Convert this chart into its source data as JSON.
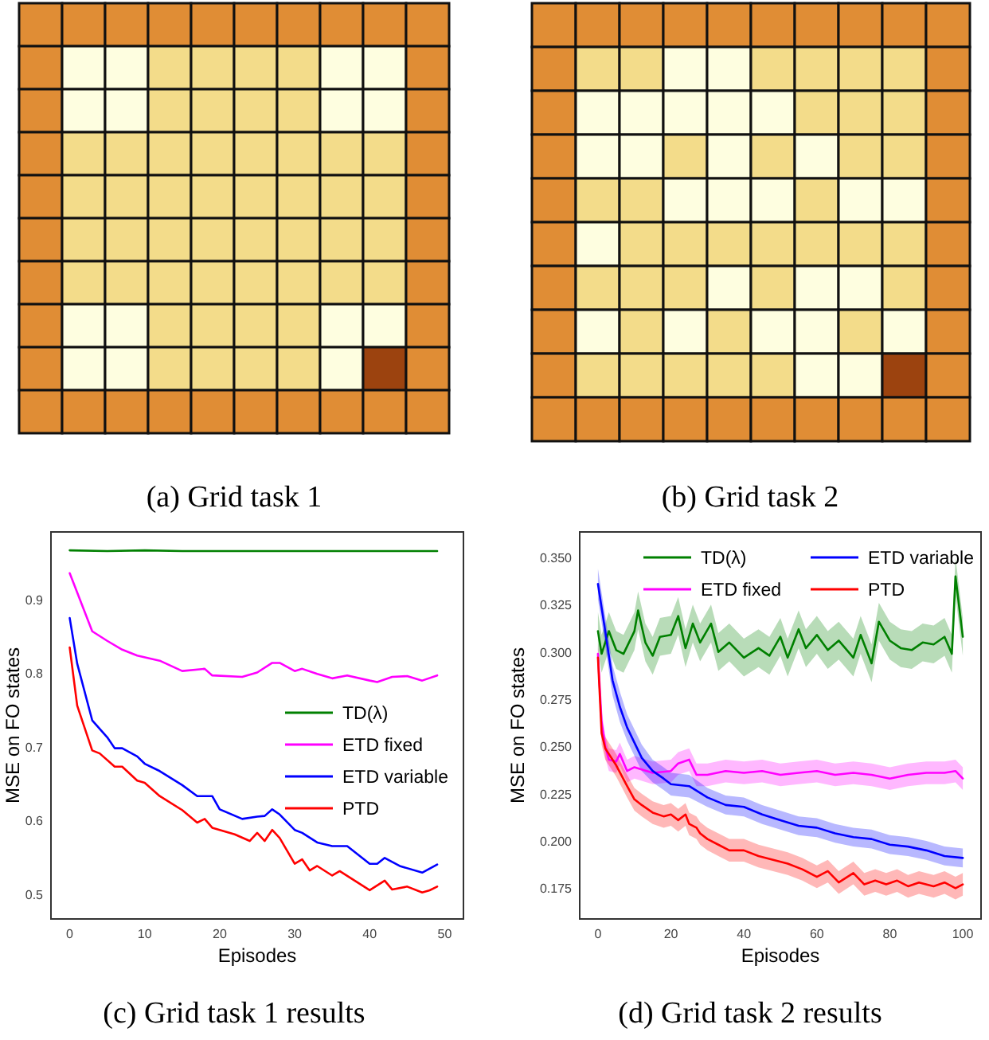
{
  "chart_data": [
    {
      "type": "other",
      "title": "(a) Grid task 1"
    },
    {
      "type": "other",
      "title": "(b) Grid task 2"
    },
    {
      "type": "line",
      "title": "(c) Grid task 1 results",
      "xlabel": "Episodes",
      "ylabel": "MSE on FO states",
      "xlim": [
        -2.5,
        52.5
      ],
      "ylim": [
        0.466,
        0.992
      ],
      "xticks": [
        0,
        10,
        20,
        30,
        40,
        50
      ],
      "yticks": [
        0.5,
        0.6,
        0.7,
        0.8,
        0.9
      ],
      "legend": "center right",
      "series": [
        {
          "name": "TD(λ)",
          "color": "#008000",
          "x": [
            0,
            5,
            10,
            15,
            20,
            25,
            30,
            35,
            40,
            45,
            49
          ],
          "values": [
            0.967,
            0.966,
            0.967,
            0.966,
            0.966,
            0.966,
            0.966,
            0.966,
            0.966,
            0.966,
            0.966
          ]
        },
        {
          "name": "ETD fixed",
          "color": "#ff00ff",
          "x": [
            0,
            3,
            5,
            7,
            9,
            12,
            15,
            18,
            19,
            23,
            25,
            27,
            28,
            30,
            31,
            33,
            35,
            37,
            40,
            41,
            43,
            45,
            47,
            49
          ],
          "values": [
            0.936,
            0.857,
            0.844,
            0.832,
            0.824,
            0.817,
            0.803,
            0.806,
            0.797,
            0.795,
            0.801,
            0.814,
            0.814,
            0.803,
            0.806,
            0.799,
            0.793,
            0.797,
            0.79,
            0.788,
            0.795,
            0.796,
            0.79,
            0.797
          ]
        },
        {
          "name": "ETD variable",
          "color": "#0000ff",
          "x": [
            0,
            1,
            3,
            5,
            6,
            7,
            9,
            10,
            12,
            15,
            17,
            19,
            20,
            23,
            25,
            26,
            27,
            28,
            30,
            31,
            33,
            35,
            37,
            40,
            41,
            42,
            44,
            47,
            49
          ],
          "values": [
            0.875,
            0.813,
            0.736,
            0.713,
            0.698,
            0.698,
            0.687,
            0.677,
            0.667,
            0.648,
            0.633,
            0.633,
            0.615,
            0.602,
            0.605,
            0.606,
            0.615,
            0.608,
            0.587,
            0.583,
            0.57,
            0.565,
            0.565,
            0.541,
            0.541,
            0.549,
            0.538,
            0.529,
            0.54
          ]
        },
        {
          "name": "PTD",
          "color": "#ff0000",
          "x": [
            0,
            1,
            3,
            4,
            6,
            7,
            9,
            10,
            12,
            15,
            17,
            18,
            19,
            22,
            24,
            25,
            26,
            27,
            28,
            30,
            31,
            32,
            33,
            35,
            36,
            38,
            40,
            42,
            43,
            45,
            47,
            48,
            49
          ],
          "values": [
            0.835,
            0.756,
            0.695,
            0.691,
            0.673,
            0.673,
            0.654,
            0.651,
            0.633,
            0.614,
            0.597,
            0.602,
            0.59,
            0.581,
            0.572,
            0.583,
            0.572,
            0.587,
            0.576,
            0.541,
            0.547,
            0.532,
            0.538,
            0.525,
            0.531,
            0.518,
            0.505,
            0.518,
            0.506,
            0.51,
            0.502,
            0.505,
            0.51
          ]
        }
      ]
    },
    {
      "type": "line",
      "title": "(d) Grid task 2 results",
      "xlabel": "Episodes",
      "ylabel": "MSE on FO states",
      "xlim": [
        -5,
        105
      ],
      "ylim": [
        0.1587,
        0.3635
      ],
      "xticks": [
        0,
        20,
        40,
        60,
        80,
        100
      ],
      "yticks": [
        {
          "value": 0.175,
          "label": "0.175"
        },
        {
          "value": 0.2,
          "label": "0.200"
        },
        {
          "value": 0.225,
          "label": "0.225"
        },
        {
          "value": 0.25,
          "label": "0.250"
        },
        {
          "value": 0.275,
          "label": "0.275"
        },
        {
          "value": 0.3,
          "label": "0.300"
        },
        {
          "value": 0.325,
          "label": "0.325"
        },
        {
          "value": 0.35,
          "label": "0.350"
        }
      ],
      "legend": "top",
      "series": [
        {
          "name": "TD(λ)",
          "color": "#008000",
          "x": [
            0,
            1,
            3,
            5,
            7,
            10,
            11,
            13,
            15,
            17,
            20,
            22,
            24,
            26,
            28,
            31,
            33,
            36,
            40,
            44,
            47,
            50,
            52,
            55,
            57,
            60,
            63,
            66,
            70,
            72,
            75,
            77,
            80,
            83,
            86,
            89,
            92,
            95,
            97,
            98,
            100
          ],
          "values": [
            0.311,
            0.299,
            0.311,
            0.301,
            0.299,
            0.311,
            0.322,
            0.305,
            0.298,
            0.308,
            0.309,
            0.319,
            0.302,
            0.315,
            0.305,
            0.315,
            0.3,
            0.305,
            0.297,
            0.302,
            0.298,
            0.308,
            0.297,
            0.312,
            0.302,
            0.309,
            0.301,
            0.306,
            0.297,
            0.309,
            0.294,
            0.316,
            0.306,
            0.302,
            0.301,
            0.305,
            0.304,
            0.308,
            0.299,
            0.34,
            0.308
          ],
          "lower": [
            0.301,
            0.289,
            0.301,
            0.291,
            0.289,
            0.301,
            0.312,
            0.295,
            0.288,
            0.298,
            0.299,
            0.309,
            0.292,
            0.305,
            0.295,
            0.305,
            0.29,
            0.295,
            0.287,
            0.292,
            0.288,
            0.298,
            0.287,
            0.302,
            0.292,
            0.299,
            0.291,
            0.296,
            0.287,
            0.299,
            0.284,
            0.306,
            0.296,
            0.292,
            0.291,
            0.295,
            0.294,
            0.298,
            0.289,
            0.33,
            0.298
          ],
          "upper": [
            0.321,
            0.309,
            0.321,
            0.311,
            0.309,
            0.321,
            0.332,
            0.315,
            0.308,
            0.318,
            0.319,
            0.329,
            0.312,
            0.325,
            0.315,
            0.325,
            0.31,
            0.315,
            0.307,
            0.312,
            0.308,
            0.318,
            0.307,
            0.322,
            0.312,
            0.319,
            0.311,
            0.316,
            0.307,
            0.319,
            0.304,
            0.326,
            0.316,
            0.312,
            0.311,
            0.315,
            0.314,
            0.318,
            0.309,
            0.35,
            0.318
          ]
        },
        {
          "name": "ETD fixed",
          "color": "#ff00ff",
          "x": [
            0,
            1,
            2,
            3,
            5,
            6,
            8,
            10,
            15,
            20,
            22,
            25,
            27,
            30,
            35,
            40,
            45,
            50,
            55,
            60,
            65,
            70,
            75,
            80,
            85,
            90,
            95,
            98,
            100
          ],
          "values": [
            0.299,
            0.263,
            0.25,
            0.243,
            0.242,
            0.246,
            0.237,
            0.239,
            0.236,
            0.237,
            0.241,
            0.243,
            0.235,
            0.235,
            0.237,
            0.236,
            0.237,
            0.235,
            0.236,
            0.237,
            0.235,
            0.236,
            0.235,
            0.233,
            0.235,
            0.236,
            0.236,
            0.237,
            0.233
          ],
          "lower": [
            0.293,
            0.257,
            0.244,
            0.237,
            0.236,
            0.24,
            0.231,
            0.233,
            0.23,
            0.231,
            0.235,
            0.237,
            0.229,
            0.229,
            0.231,
            0.23,
            0.231,
            0.229,
            0.23,
            0.231,
            0.229,
            0.23,
            0.229,
            0.227,
            0.229,
            0.23,
            0.23,
            0.231,
            0.227
          ],
          "upper": [
            0.305,
            0.269,
            0.256,
            0.249,
            0.248,
            0.252,
            0.243,
            0.245,
            0.242,
            0.243,
            0.247,
            0.249,
            0.241,
            0.241,
            0.243,
            0.242,
            0.243,
            0.241,
            0.242,
            0.243,
            0.241,
            0.242,
            0.241,
            0.239,
            0.241,
            0.242,
            0.242,
            0.243,
            0.239
          ]
        },
        {
          "name": "ETD variable",
          "color": "#0000ff",
          "x": [
            0,
            2,
            4,
            6,
            8,
            10,
            12,
            15,
            18,
            20,
            25,
            30,
            35,
            40,
            45,
            50,
            55,
            60,
            65,
            70,
            75,
            80,
            85,
            90,
            95,
            100
          ],
          "values": [
            0.336,
            0.311,
            0.285,
            0.271,
            0.26,
            0.252,
            0.244,
            0.237,
            0.233,
            0.23,
            0.229,
            0.223,
            0.219,
            0.218,
            0.214,
            0.211,
            0.208,
            0.207,
            0.204,
            0.202,
            0.201,
            0.198,
            0.197,
            0.195,
            0.192,
            0.191
          ],
          "lower": [
            0.328,
            0.303,
            0.277,
            0.263,
            0.253,
            0.245,
            0.237,
            0.231,
            0.227,
            0.224,
            0.223,
            0.218,
            0.214,
            0.213,
            0.209,
            0.206,
            0.203,
            0.202,
            0.199,
            0.197,
            0.196,
            0.193,
            0.192,
            0.19,
            0.187,
            0.186
          ],
          "upper": [
            0.344,
            0.319,
            0.293,
            0.279,
            0.267,
            0.259,
            0.251,
            0.243,
            0.239,
            0.236,
            0.235,
            0.228,
            0.224,
            0.223,
            0.219,
            0.216,
            0.213,
            0.212,
            0.209,
            0.207,
            0.206,
            0.203,
            0.202,
            0.2,
            0.197,
            0.196
          ]
        },
        {
          "name": "PTD",
          "color": "#ff0000",
          "x": [
            0,
            1,
            2,
            3,
            5,
            8,
            10,
            12,
            15,
            18,
            20,
            22,
            24,
            25,
            27,
            28,
            30,
            33,
            36,
            40,
            44,
            48,
            52,
            56,
            60,
            63,
            66,
            70,
            73,
            76,
            79,
            82,
            85,
            88,
            92,
            95,
            98,
            100
          ],
          "values": [
            0.297,
            0.257,
            0.249,
            0.246,
            0.24,
            0.229,
            0.222,
            0.219,
            0.215,
            0.213,
            0.214,
            0.211,
            0.214,
            0.209,
            0.207,
            0.204,
            0.201,
            0.198,
            0.195,
            0.195,
            0.192,
            0.19,
            0.188,
            0.185,
            0.181,
            0.184,
            0.178,
            0.183,
            0.177,
            0.179,
            0.177,
            0.179,
            0.176,
            0.178,
            0.176,
            0.178,
            0.175,
            0.177
          ],
          "lower": [
            0.291,
            0.251,
            0.243,
            0.24,
            0.234,
            0.223,
            0.216,
            0.213,
            0.209,
            0.207,
            0.208,
            0.205,
            0.208,
            0.203,
            0.201,
            0.198,
            0.195,
            0.192,
            0.189,
            0.189,
            0.186,
            0.184,
            0.182,
            0.179,
            0.175,
            0.178,
            0.172,
            0.177,
            0.171,
            0.173,
            0.171,
            0.173,
            0.17,
            0.172,
            0.17,
            0.172,
            0.169,
            0.171
          ],
          "upper": [
            0.303,
            0.263,
            0.255,
            0.252,
            0.246,
            0.235,
            0.228,
            0.225,
            0.221,
            0.219,
            0.22,
            0.217,
            0.22,
            0.215,
            0.213,
            0.21,
            0.207,
            0.204,
            0.201,
            0.201,
            0.198,
            0.196,
            0.194,
            0.191,
            0.187,
            0.19,
            0.184,
            0.189,
            0.183,
            0.185,
            0.183,
            0.185,
            0.182,
            0.184,
            0.182,
            0.184,
            0.181,
            0.183
          ]
        }
      ]
    }
  ]
}
